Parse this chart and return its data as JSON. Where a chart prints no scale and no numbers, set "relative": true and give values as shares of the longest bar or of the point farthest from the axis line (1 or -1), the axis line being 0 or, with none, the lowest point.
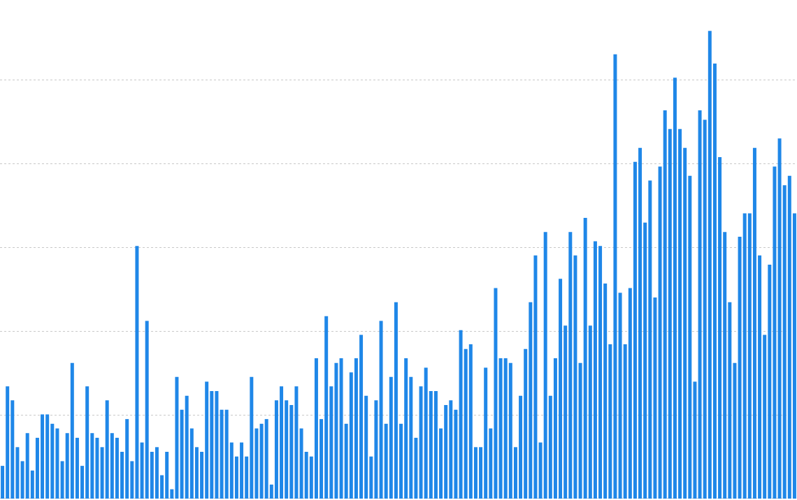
{
  "chart_data": {
    "type": "bar",
    "relative": true,
    "grid": "y",
    "color": "#1f87e8",
    "categories": [
      null,
      null,
      null,
      null,
      null,
      null,
      null,
      null,
      null,
      null,
      null,
      null,
      null,
      null,
      null,
      null,
      null,
      null,
      null,
      null,
      null,
      null,
      null,
      null,
      null,
      null,
      null,
      null,
      null,
      null,
      null,
      null,
      null,
      null,
      null,
      null,
      null,
      null,
      null,
      null,
      null,
      null,
      null,
      null,
      null,
      null,
      null,
      null,
      null,
      null,
      null,
      null,
      null,
      null,
      null,
      null,
      null,
      null,
      null,
      null,
      null,
      null,
      null,
      null,
      null,
      null,
      null,
      null,
      null,
      null,
      null,
      null,
      null,
      null,
      null,
      null,
      null,
      null,
      null,
      null,
      null,
      null,
      null,
      null,
      null,
      null,
      null,
      null,
      null,
      null,
      null,
      null,
      null,
      null,
      null,
      null,
      null,
      null,
      null,
      null,
      null,
      null,
      null,
      null,
      null,
      null,
      null,
      null,
      null,
      null,
      null,
      null,
      null,
      null,
      null,
      null,
      null,
      null,
      null,
      null,
      null,
      null,
      null,
      null,
      null,
      null,
      null,
      null,
      null,
      null,
      null,
      null,
      null,
      null,
      null,
      null,
      null,
      null,
      null,
      null,
      null,
      null,
      null,
      null,
      null,
      null,
      null,
      null,
      null,
      null,
      null,
      null,
      null,
      null,
      null,
      null,
      null,
      null,
      null,
      null
    ],
    "values": [
      0.07,
      0.24,
      0.21,
      0.11,
      0.08,
      0.14,
      0.06,
      0.13,
      0.18,
      0.18,
      0.16,
      0.15,
      0.08,
      0.14,
      0.29,
      0.13,
      0.07,
      0.24,
      0.14,
      0.13,
      0.11,
      0.21,
      0.14,
      0.13,
      0.1,
      0.17,
      0.08,
      0.54,
      0.12,
      0.38,
      0.1,
      0.11,
      0.05,
      0.1,
      0.02,
      0.26,
      0.19,
      0.22,
      0.15,
      0.11,
      0.1,
      0.25,
      0.23,
      0.23,
      0.19,
      0.19,
      0.12,
      0.09,
      0.12,
      0.09,
      0.26,
      0.15,
      0.16,
      0.17,
      0.03,
      0.21,
      0.24,
      0.21,
      0.2,
      0.24,
      0.15,
      0.1,
      0.09,
      0.3,
      0.17,
      0.39,
      0.24,
      0.29,
      0.3,
      0.16,
      0.27,
      0.3,
      0.35,
      0.22,
      0.09,
      0.21,
      0.38,
      0.16,
      0.26,
      0.42,
      0.16,
      0.3,
      0.26,
      0.13,
      0.24,
      0.28,
      0.23,
      0.23,
      0.15,
      0.2,
      0.21,
      0.19,
      0.36,
      0.32,
      0.33,
      0.11,
      0.11,
      0.28,
      0.15,
      0.45,
      0.3,
      0.3,
      0.29,
      0.11,
      0.22,
      0.32,
      0.42,
      0.52,
      0.12,
      0.57,
      0.22,
      0.3,
      0.47,
      0.37,
      0.57,
      0.52,
      0.29,
      0.6,
      0.37,
      0.55,
      0.54,
      0.46,
      0.33,
      0.95,
      0.44,
      0.33,
      0.45,
      0.72,
      0.75,
      0.59,
      0.68,
      0.43,
      0.71,
      0.83,
      0.79,
      0.9,
      0.79,
      0.75,
      0.69,
      0.25,
      0.83,
      0.81,
      1,
      0.93,
      0.73,
      0.57,
      0.42,
      0.29,
      0.56,
      0.61,
      0.61,
      0.75,
      0.52,
      0.35,
      0.5,
      0.71,
      0.77,
      0.67,
      0.69,
      0.61
    ]
  }
}
